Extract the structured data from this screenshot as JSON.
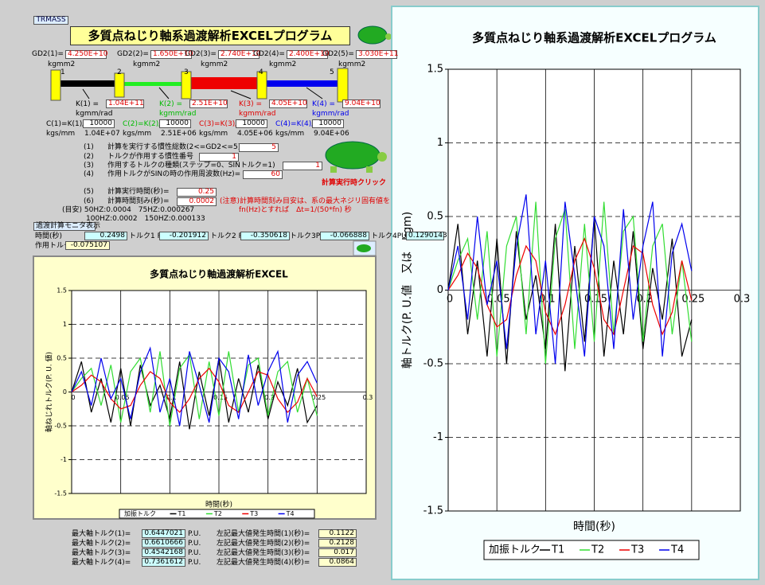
{
  "sheet": {
    "tag": "TRMASS",
    "title": "多質点ねじり軸系過渡解析EXCELプログラム",
    "gd2": [
      {
        "label": "GD2(1)=",
        "value": "4.250E+10",
        "unit": "kgmm2"
      },
      {
        "label": "GD2(2)=",
        "value": "1.650E+10",
        "unit": "kgmm2"
      },
      {
        "label": "GD2(3)=",
        "value": "2.740E+10",
        "unit": "kgmm2"
      },
      {
        "label": "GD2(4)=",
        "value": "2.400E+10",
        "unit": "kgmm2"
      },
      {
        "label": "GD2(5)=",
        "value": "3.030E+11",
        "unit": "kgmm2"
      }
    ],
    "masses": [
      "1",
      "2",
      "3",
      "4",
      "5"
    ],
    "k": [
      {
        "label": "K(1) =",
        "value": "1.04E+11",
        "unit": "kgmm/rad"
      },
      {
        "label": "K(2) =",
        "value": "2.51E+10",
        "unit": "kgmm/rad"
      },
      {
        "label": "K(3) =",
        "value": "4.05E+10",
        "unit": "kgmm/rad"
      },
      {
        "label": "K(4) =",
        "value": "9.04E+10",
        "unit": "kgmm/rad"
      }
    ],
    "c": [
      {
        "label": "C(1)=K(1)/",
        "divisor": "10000",
        "unit": "kgs/mm",
        "value": "1.04E+07"
      },
      {
        "label": "C(2)=K(2)/",
        "divisor": "10000",
        "unit": "kgs/mm",
        "value": "2.51E+06"
      },
      {
        "label": "C(3)=K(3)/",
        "divisor": "10000",
        "unit": "kgs/mm",
        "value": "4.05E+06"
      },
      {
        "label": "C(4)=K(4)/",
        "divisor": "10000",
        "unit": "kgs/mm",
        "value": "9.04E+06"
      }
    ],
    "settings": [
      {
        "no": "(1)",
        "label": "計算を実行する慣性総数(2<=GD2<=5)",
        "value": "5"
      },
      {
        "no": "(2)",
        "label": "トルクが作用する慣性番号　=",
        "value": "1"
      },
      {
        "no": "(3)",
        "label": "作用するトルクの種類(ステップ=0、SINトルク=1)",
        "value": "1"
      },
      {
        "no": "(4)",
        "label": "作用トルクがSINの時の作用周波数(Hz)=",
        "value": "60"
      },
      {
        "no": "(5)",
        "label": "計算実行時間(秒)=",
        "value": "0.25"
      },
      {
        "no": "(6)",
        "label": "計算時間刻み(秒)=",
        "value": "0.0002"
      }
    ],
    "note": [
      "(注意)計算時間刻み目安は、系の最大ネジリ固有値を",
      "fn(Hz)とすれば　Δt=1/(50*fn) 秒"
    ],
    "guide": [
      "(目安) 50HZ:0.0004　75HZ:0.000267",
      "100HZ:0.0002　150HZ:0.000133"
    ],
    "run_button": "計算実行時クリック",
    "monitor": {
      "title": "過渡計算モニタ表示",
      "time_label": "時間(秒)",
      "time": "0.2498",
      "torques": [
        {
          "label": "トルク1 PU",
          "value": "-0.201912"
        },
        {
          "label": "トルク2 PU",
          "value": "-0.350618"
        },
        {
          "label": "トルク3PU",
          "value": "-0.066888"
        },
        {
          "label": "トルク4PU",
          "value": "0.1290143"
        }
      ],
      "applied_label": "作用トルク",
      "applied": "-0.075107"
    },
    "results": [
      {
        "label": "最大軸トルク(1)=",
        "value": "0.6447021",
        "unit": "P.U.",
        "time_label": "左記最大値発生時間(1)(秒)=",
        "time": "0.1122"
      },
      {
        "label": "最大軸トルク(2)=",
        "value": "0.6610666",
        "unit": "P.U.",
        "time_label": "左記最大値発生時間(2)(秒)=",
        "time": "0.2128"
      },
      {
        "label": "最大軸トルク(3)=",
        "value": "0.4542168",
        "unit": "P.U.",
        "time_label": "左記最大値発生時間(3)(秒)=",
        "time": "0.017"
      },
      {
        "label": "最大軸トルク(4)=",
        "value": "0.7361612",
        "unit": "P.U.",
        "time_label": "左記最大値発生時間(4)(秒)=",
        "time": "0.0864"
      }
    ]
  },
  "chart_data": [
    {
      "type": "line",
      "title": "多質点ねじり軸過渡解析EXCEL",
      "x_label": "時間(秒)",
      "y_label": "軸ねじれトルク(P. U. 値)",
      "legend_label": "加振トルク",
      "grid": true,
      "xlim": [
        0,
        0.3
      ],
      "xticks": [
        0,
        0.05,
        0.1,
        0.15,
        0.2,
        0.25,
        0.3
      ],
      "ylim": [
        -1.5,
        1.5
      ],
      "yticks": [
        -1.5,
        -1,
        -0.5,
        0,
        0.5,
        1,
        1.5
      ],
      "x": [
        0,
        0.01,
        0.02,
        0.03,
        0.04,
        0.05,
        0.06,
        0.07,
        0.08,
        0.09,
        0.1,
        0.11,
        0.12,
        0.13,
        0.14,
        0.15,
        0.16,
        0.17,
        0.18,
        0.19,
        0.2,
        0.21,
        0.22,
        0.23,
        0.24,
        0.25
      ],
      "series": [
        {
          "name": "T1",
          "color": "#000000",
          "values": [
            0,
            0.45,
            -0.3,
            0.2,
            -0.45,
            0.35,
            -0.5,
            0.4,
            -0.2,
            0.1,
            -0.4,
            0.45,
            -0.55,
            0.3,
            -0.35,
            0.5,
            -0.45,
            0.2,
            -0.3,
            0.4,
            -0.4,
            0.15,
            -0.2,
            0.35,
            -0.45,
            -0.2
          ]
        },
        {
          "name": "T2",
          "color": "#33dd33",
          "values": [
            0,
            0.2,
            0.35,
            -0.2,
            0.4,
            -0.45,
            0.3,
            0.5,
            -0.3,
            0.6,
            -0.5,
            0.35,
            0.55,
            -0.4,
            0.45,
            -0.35,
            0.6,
            -0.3,
            0.4,
            0.5,
            -0.35,
            0.3,
            0.45,
            -0.3,
            0.2,
            -0.35
          ]
        },
        {
          "name": "T3",
          "color": "#ee0000",
          "values": [
            0,
            0.1,
            0.25,
            0.15,
            -0.1,
            -0.25,
            -0.2,
            0.1,
            0.3,
            0.2,
            -0.15,
            -0.3,
            -0.1,
            0.2,
            0.35,
            0.15,
            -0.2,
            -0.3,
            0,
            0.3,
            0.25,
            -0.1,
            -0.3,
            -0.15,
            0.2,
            -0.07
          ]
        },
        {
          "name": "T4",
          "color": "#0000ee",
          "values": [
            0,
            0.3,
            -0.2,
            0.5,
            -0.1,
            0.2,
            -0.4,
            0.3,
            0.65,
            -0.3,
            0.2,
            -0.5,
            0.6,
            0.1,
            -0.45,
            0.5,
            0.3,
            -0.4,
            0.55,
            -0.2,
            0.3,
            0.6,
            -0.45,
            0.25,
            0.45,
            0.13
          ]
        }
      ]
    },
    {
      "type": "line",
      "title": "多質点ねじり軸系過渡解析EXCELプログラム",
      "x_label": "時間(秒)",
      "y_label": "軸トルク(P. U.値　又は　kgm)",
      "legend_label": "加振トルク",
      "grid": true,
      "xlim": [
        0,
        0.3
      ],
      "xticks": [
        0,
        0.05,
        0.1,
        0.15,
        0.2,
        0.25,
        0.3
      ],
      "ylim": [
        -1.5,
        1.5
      ],
      "yticks": [
        -1.5,
        -1,
        -0.5,
        0,
        0.5,
        1,
        1.5
      ],
      "x": [
        0,
        0.01,
        0.02,
        0.03,
        0.04,
        0.05,
        0.06,
        0.07,
        0.08,
        0.09,
        0.1,
        0.11,
        0.12,
        0.13,
        0.14,
        0.15,
        0.16,
        0.17,
        0.18,
        0.19,
        0.2,
        0.21,
        0.22,
        0.23,
        0.24,
        0.25
      ],
      "series": [
        {
          "name": "T1",
          "color": "#000000",
          "values": [
            0,
            0.45,
            -0.3,
            0.2,
            -0.45,
            0.35,
            -0.5,
            0.4,
            -0.2,
            0.1,
            -0.4,
            0.45,
            -0.55,
            0.3,
            -0.35,
            0.5,
            -0.45,
            0.2,
            -0.3,
            0.4,
            -0.4,
            0.15,
            -0.2,
            0.35,
            -0.45,
            -0.2
          ]
        },
        {
          "name": "T2",
          "color": "#33dd33",
          "values": [
            0,
            0.2,
            0.35,
            -0.2,
            0.4,
            -0.45,
            0.3,
            0.5,
            -0.3,
            0.6,
            -0.5,
            0.35,
            0.55,
            -0.4,
            0.45,
            -0.35,
            0.6,
            -0.3,
            0.4,
            0.5,
            -0.35,
            0.3,
            0.45,
            -0.3,
            0.2,
            -0.35
          ]
        },
        {
          "name": "T3",
          "color": "#ee0000",
          "values": [
            0,
            0.1,
            0.25,
            0.15,
            -0.1,
            -0.25,
            -0.2,
            0.1,
            0.3,
            0.2,
            -0.15,
            -0.3,
            -0.1,
            0.2,
            0.35,
            0.15,
            -0.2,
            -0.3,
            0,
            0.3,
            0.25,
            -0.1,
            -0.3,
            -0.15,
            0.2,
            -0.07
          ]
        },
        {
          "name": "T4",
          "color": "#0000ee",
          "values": [
            0,
            0.3,
            -0.2,
            0.5,
            -0.1,
            0.2,
            -0.4,
            0.3,
            0.65,
            -0.3,
            0.2,
            -0.5,
            0.6,
            0.1,
            -0.45,
            0.5,
            0.3,
            -0.4,
            0.55,
            -0.2,
            0.3,
            0.6,
            -0.45,
            0.25,
            0.45,
            0.13
          ]
        }
      ]
    }
  ]
}
